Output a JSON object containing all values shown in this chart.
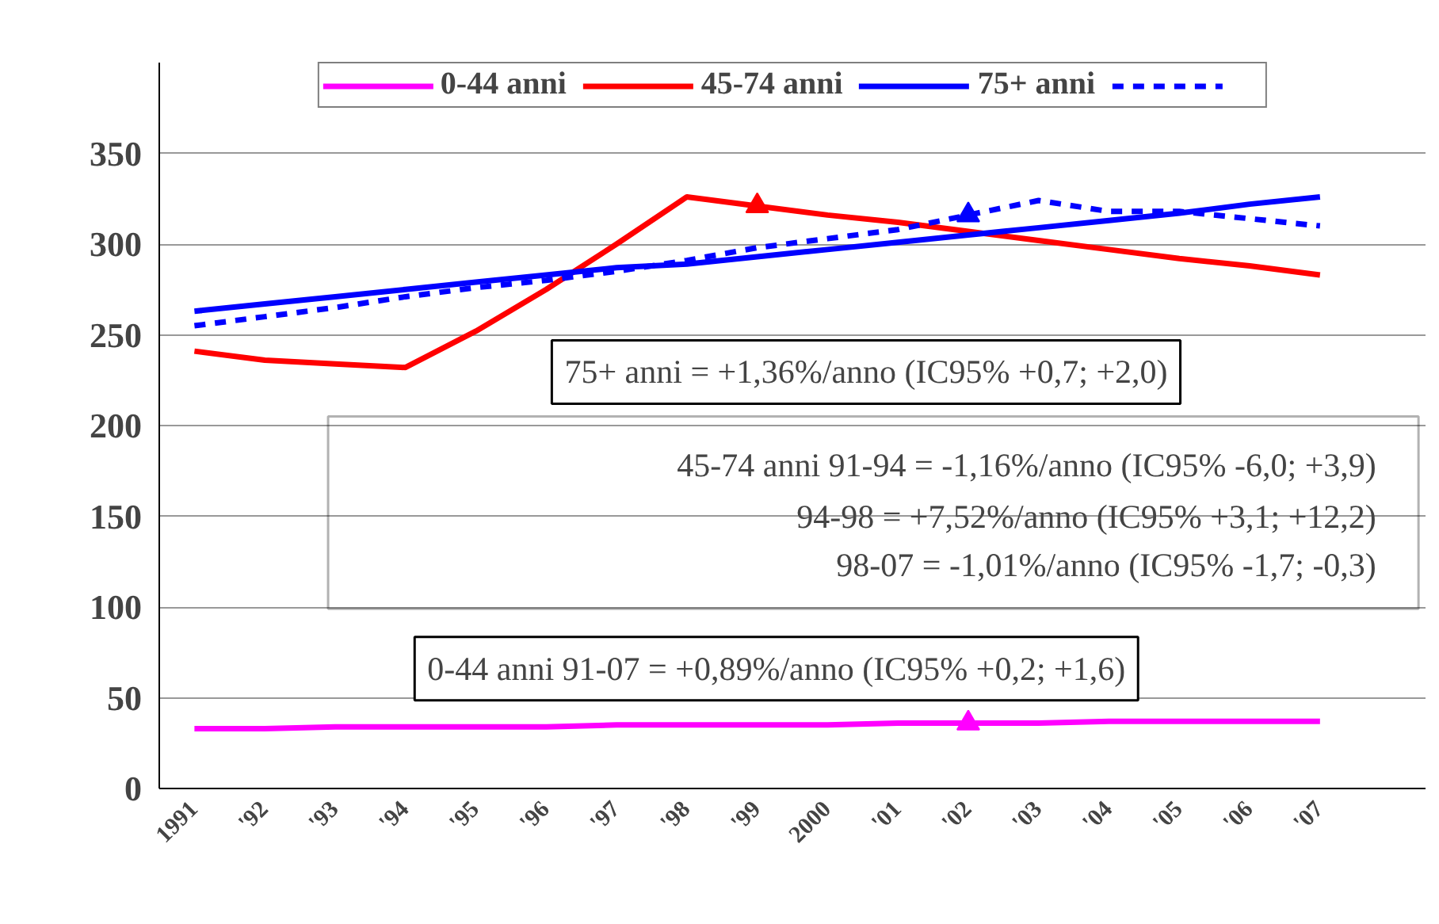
{
  "chart_data": {
    "type": "line",
    "categories": [
      "1991",
      "'92",
      "'93",
      "'94",
      "'95",
      "'96",
      "'97",
      "'98",
      "'99",
      "2000",
      "'01",
      "'02",
      "'03",
      "'04",
      "'05",
      "'06",
      "'07",
      null
    ],
    "series": [
      {
        "name": "0-44 anni",
        "color": "#ff00ff",
        "line_style": "solid",
        "values": [
          33,
          33,
          34,
          34,
          34,
          34,
          35,
          35,
          35,
          35,
          36,
          36,
          36,
          37,
          37,
          37,
          37,
          null
        ]
      },
      {
        "name": "45-74 anni",
        "color": "#ff0000",
        "line_style": "solid",
        "values": [
          241,
          236,
          234,
          232,
          252,
          275,
          300,
          326,
          321,
          316,
          312,
          307,
          302,
          297,
          292,
          288,
          283,
          null
        ]
      },
      {
        "name": "75+ anni",
        "color": "#0000ff",
        "line_style": "solid",
        "values": [
          263,
          267,
          271,
          275,
          279,
          283,
          287,
          289,
          293,
          297,
          301,
          305,
          309,
          313,
          317,
          322,
          326,
          null
        ]
      },
      {
        "color": "#0000ff",
        "line_style": "dashed",
        "values": [
          255,
          260,
          265,
          271,
          276,
          280,
          285,
          291,
          298,
          303,
          308,
          316,
          324,
          318,
          318,
          314,
          310,
          null
        ]
      },
      {
        "type": "scatter",
        "marker": "triangle",
        "color": "#ff0000",
        "values": [
          null,
          null,
          null,
          null,
          null,
          null,
          null,
          null,
          321,
          null,
          null,
          null,
          null,
          null,
          null,
          null,
          null,
          null
        ]
      },
      {
        "type": "scatter",
        "marker": "triangle",
        "color": "#0000ff",
        "values": [
          null,
          null,
          null,
          null,
          null,
          null,
          null,
          null,
          null,
          null,
          null,
          316,
          null,
          null,
          null,
          null,
          null,
          null
        ]
      },
      {
        "type": "scatter",
        "marker": "triangle",
        "color": "#ff00ff",
        "values": [
          null,
          null,
          null,
          null,
          null,
          null,
          null,
          null,
          null,
          null,
          null,
          36,
          null,
          null,
          null,
          null,
          null,
          null
        ]
      }
    ],
    "ylim": [
      0,
      400
    ],
    "yticks": [
      0,
      50,
      100,
      150,
      200,
      250,
      300,
      350
    ],
    "grid": "y",
    "legend": "top",
    "annotations": [
      "75+ anni = +1,36%/anno (IC95% +0,7; +2,0)",
      "45-74 anni 91-94 = -1,16%/anno (IC95% -6,0; +3,9)",
      "94-98 = +7,52%/anno (IC95% +3,1; +12,2)",
      "98-07 = -1,01%/anno (IC95% -1,7; -0,3)",
      "0-44 anni 91-07 = +0,89%/anno (IC95% +0,2; +1,6)"
    ]
  }
}
